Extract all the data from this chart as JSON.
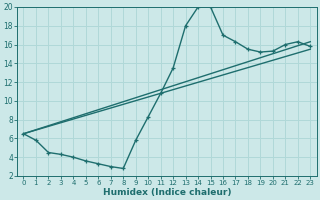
{
  "xlabel": "Humidex (Indice chaleur)",
  "ylabel": "",
  "bg_color": "#cce8e8",
  "line_color": "#1e6e6e",
  "grid_color": "#b0d8d8",
  "xlim": [
    -0.5,
    23.5
  ],
  "ylim": [
    2,
    20
  ],
  "xticks": [
    0,
    1,
    2,
    3,
    4,
    5,
    6,
    7,
    8,
    9,
    10,
    11,
    12,
    13,
    14,
    15,
    16,
    17,
    18,
    19,
    20,
    21,
    22,
    23
  ],
  "yticks": [
    2,
    4,
    6,
    8,
    10,
    12,
    14,
    16,
    18,
    20
  ],
  "curve1_x": [
    0,
    1,
    2,
    3,
    4,
    5,
    6,
    7,
    8,
    9,
    10,
    11,
    12,
    13,
    14,
    15,
    16,
    17,
    18,
    19,
    20,
    21,
    22,
    23
  ],
  "curve1_y": [
    6.5,
    5.8,
    4.5,
    4.3,
    4.0,
    3.6,
    3.3,
    3.0,
    2.8,
    5.8,
    8.3,
    10.8,
    13.5,
    18.0,
    20.0,
    20.0,
    17.0,
    16.3,
    15.5,
    15.2,
    15.3,
    16.0,
    16.3,
    15.8
  ],
  "curve2_x": [
    0,
    23
  ],
  "curve2_y": [
    6.5,
    16.3
  ],
  "curve3_x": [
    0,
    23
  ],
  "curve3_y": [
    6.5,
    15.5
  ]
}
